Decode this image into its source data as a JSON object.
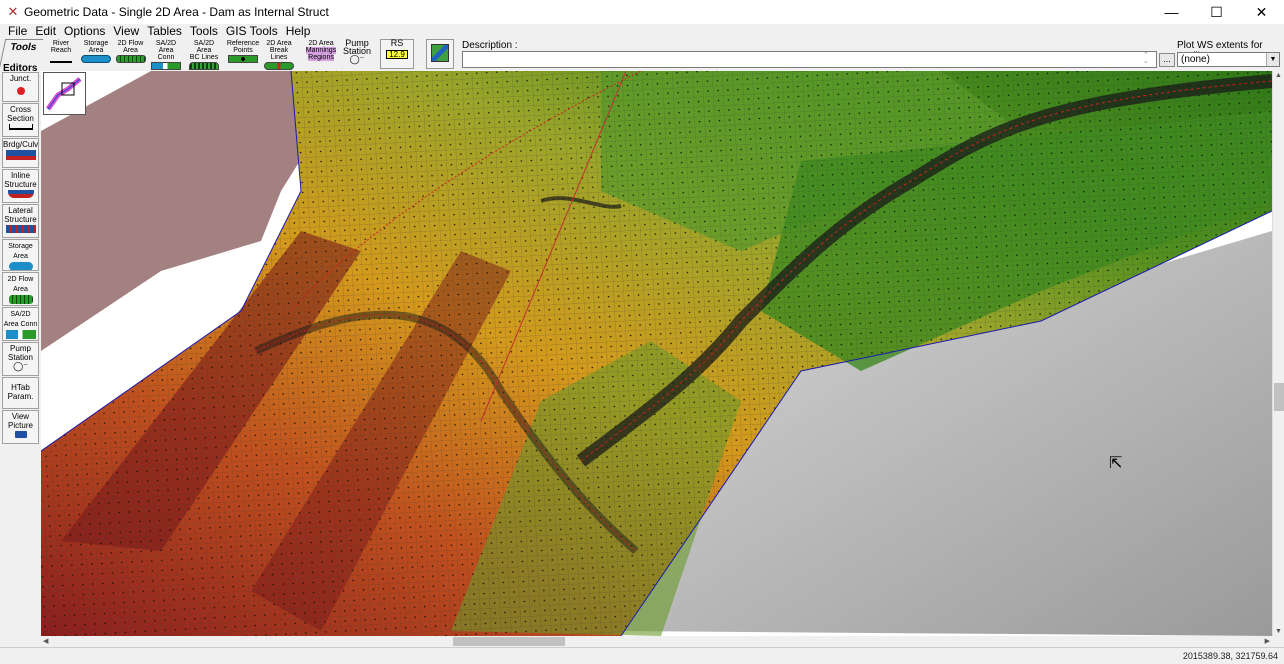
{
  "window": {
    "title": "Geometric Data - Single 2D Area - Dam as Internal Struct",
    "minimize_glyph": "—",
    "maximize_glyph": "☐",
    "close_glyph": "✕",
    "app_icon": "hecras-icon"
  },
  "menu": [
    "File",
    "Edit",
    "Options",
    "View",
    "Tables",
    "Tools",
    "GIS Tools",
    "Help"
  ],
  "tabs": {
    "tools": "Tools",
    "editors": "Editors"
  },
  "toolbar": [
    {
      "l1": "River",
      "l2": "Reach",
      "icon": "river-reach-icon"
    },
    {
      "l1": "Storage",
      "l2": "Area",
      "icon": "storage-area-icon"
    },
    {
      "l1": "2D Flow",
      "l2": "Area",
      "icon": "2d-flow-area-icon"
    },
    {
      "l1": "SA/2D Area",
      "l2": "Conn",
      "icon": "sa-2d-conn-icon"
    },
    {
      "l1": "SA/2D Area",
      "l2": "BC Lines",
      "icon": "bc-lines-icon"
    },
    {
      "l1": "Reference",
      "l2": "Points",
      "icon": "reference-points-icon"
    },
    {
      "l1": "2D Area",
      "l2": "Break Lines",
      "icon": "break-lines-icon"
    },
    {
      "l1": "2D Area",
      "l2": "Mannings Regions",
      "icon": "mannings-regions-icon"
    },
    {
      "l1": "Pump",
      "l2": "Station",
      "icon": "pump-station-icon"
    },
    {
      "l1": "RS",
      "l2": "12.9",
      "icon": "rs-icon"
    },
    {
      "l1": "",
      "l2": "",
      "icon": "background-map-icon"
    }
  ],
  "description": {
    "label": "Description :",
    "value": "",
    "browse": "..."
  },
  "plot_ws": {
    "label": "Plot WS extents for Profile:",
    "selected": "(none)"
  },
  "editors": [
    {
      "label": "Junct.",
      "icon": "junction-icon"
    },
    {
      "label": "Cross Section",
      "icon": "cross-section-icon"
    },
    {
      "label": "Brdg/Culv",
      "icon": "bridge-culvert-icon"
    },
    {
      "label": "Inline Structure",
      "icon": "inline-structure-icon"
    },
    {
      "label": "Lateral Structure",
      "icon": "lateral-structure-icon"
    },
    {
      "label": "Storage Area",
      "icon": "storage-area-icon"
    },
    {
      "label": "2D Flow Area",
      "icon": "2d-flow-area-icon"
    },
    {
      "label": "SA/2D Area Conn",
      "icon": "sa-2d-conn-icon"
    },
    {
      "label": "Pump Station",
      "icon": "pump-station-icon"
    },
    {
      "label": "HTab Param.",
      "icon": "htab-icon"
    },
    {
      "label": "View Picture",
      "icon": "camera-icon"
    }
  ],
  "colors": {
    "terrain_low": "#2f7a17",
    "terrain_mid": "#d49a1c",
    "terrain_high": "#8a1e1e",
    "hillshade": "#b8b8b8",
    "mesh_line": "#3a3a3a",
    "boundary": "#1a1ab0"
  },
  "status": {
    "coordinates": "2015389.38, 321759.64"
  }
}
